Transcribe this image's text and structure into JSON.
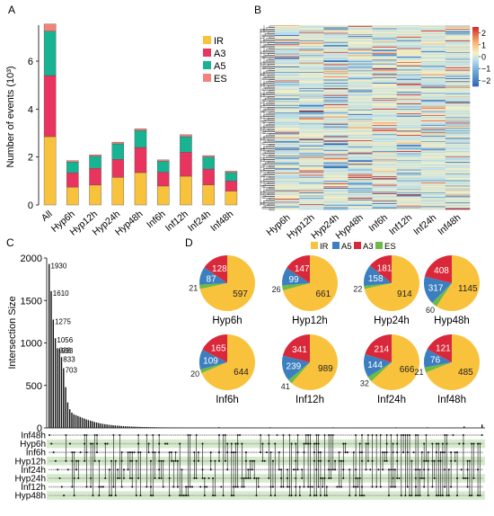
{
  "panel_letters": [
    "A",
    "B",
    "C",
    "D"
  ],
  "colors": {
    "IR": "#F9C23C",
    "A3": "#E8345E",
    "A5": "#18B392",
    "ES": "#F4827A",
    "pie_IR": "#F9C23C",
    "pie_A5": "#3C7FC0",
    "pie_A3": "#D9283A",
    "pie_ES": "#6DBA45"
  },
  "chart_data": [
    {
      "type": "bar",
      "panel": "A",
      "stacked": true,
      "ylabel": "Number of events (10³)",
      "xlabel": "",
      "ylim": [
        0,
        7.5
      ],
      "yticks": [
        0,
        2,
        4,
        6
      ],
      "categories": [
        "All",
        "Hyp6h",
        "Hyp12h",
        "Hyp24h",
        "Hyp48h",
        "Inf6h",
        "Inf12h",
        "Inf24h",
        "Inf48h"
      ],
      "series": [
        {
          "name": "IR",
          "values": [
            2.85,
            0.74,
            0.83,
            1.15,
            1.35,
            0.79,
            1.2,
            0.84,
            0.58
          ]
        },
        {
          "name": "A3",
          "values": [
            2.55,
            0.6,
            0.7,
            0.75,
            1.05,
            0.58,
            1.0,
            0.66,
            0.42
          ]
        },
        {
          "name": "A5",
          "values": [
            1.85,
            0.45,
            0.5,
            0.65,
            0.7,
            0.45,
            0.65,
            0.5,
            0.35
          ]
        },
        {
          "name": "ES",
          "values": [
            0.3,
            0.06,
            0.06,
            0.07,
            0.08,
            0.06,
            0.08,
            0.06,
            0.06
          ]
        }
      ],
      "legend": {
        "placement": "top-right",
        "entries": [
          "IR",
          "A3",
          "A5",
          "ES"
        ]
      }
    },
    {
      "type": "heatmap",
      "panel": "B",
      "columns": [
        "Hyp6h",
        "Hyp12h",
        "Hyp24h",
        "Hyp48h",
        "Inf6h",
        "Inf12h",
        "Inf24h",
        "Inf48h"
      ],
      "row_count": 240,
      "colorbar": {
        "ticks": [
          2,
          1,
          0,
          -1,
          -2
        ],
        "range": [
          -2.5,
          2.5
        ]
      },
      "dendrogram": "left"
    },
    {
      "type": "bar",
      "panel": "C",
      "ylabel": "Intersection Size",
      "ylim": [
        0,
        2000
      ],
      "yticks": [
        0,
        500,
        1000,
        1500,
        2000
      ],
      "values": [
        1930,
        1610,
        1275,
        1056,
        938,
        933,
        833,
        703,
        480,
        300,
        220,
        180,
        160,
        150,
        140,
        130,
        120,
        110,
        100,
        92,
        85,
        78,
        70,
        64,
        58,
        52,
        48,
        44,
        40,
        37,
        34,
        31,
        29,
        27,
        25,
        23,
        21,
        19,
        18,
        17,
        16,
        15,
        14,
        13,
        12,
        11,
        10,
        10,
        9,
        9,
        8,
        8,
        7,
        7,
        6,
        6,
        6,
        5,
        5,
        5,
        5,
        4,
        4,
        4,
        4,
        4,
        3,
        3,
        3,
        3,
        3,
        3,
        3,
        2,
        2,
        2,
        2,
        2,
        2,
        2,
        2,
        2,
        2,
        2,
        2,
        2,
        2,
        2,
        2,
        2,
        2,
        2,
        2,
        2,
        2,
        2,
        2,
        2,
        2,
        2
      ],
      "labeled_values": [
        1930,
        1610,
        1275,
        1056,
        938,
        933,
        833,
        703
      ],
      "set_labels": [
        "Inf48h",
        "Hyp6h",
        "Inf6h",
        "Hyp12h",
        "Inf24h",
        "Hyp24h",
        "Inf12h",
        "Hyp48h"
      ]
    },
    {
      "type": "pie",
      "panel": "D",
      "legend": [
        "IR",
        "A5",
        "A3",
        "ES"
      ],
      "pies": [
        {
          "label": "Hyp6h",
          "IR": 597,
          "A5": 87,
          "A3": 128,
          "ES": 21
        },
        {
          "label": "Hyp12h",
          "IR": 661,
          "A5": 99,
          "A3": 147,
          "ES": 26
        },
        {
          "label": "Hyp24h",
          "IR": 914,
          "A5": 158,
          "A3": 181,
          "ES": 22
        },
        {
          "label": "Hyp48h",
          "IR": 1145,
          "A5": 317,
          "A3": 408,
          "ES": 60
        },
        {
          "label": "Inf6h",
          "IR": 644,
          "A5": 109,
          "A3": 165,
          "ES": 20
        },
        {
          "label": "Inf12h",
          "IR": 989,
          "A5": 239,
          "A3": 341,
          "ES": 41
        },
        {
          "label": "Inf24h",
          "IR": 666,
          "A5": 144,
          "A3": 214,
          "ES": 32
        },
        {
          "label": "Inf48h",
          "IR": 485,
          "A5": 76,
          "A3": 121,
          "ES": 21
        }
      ]
    }
  ]
}
